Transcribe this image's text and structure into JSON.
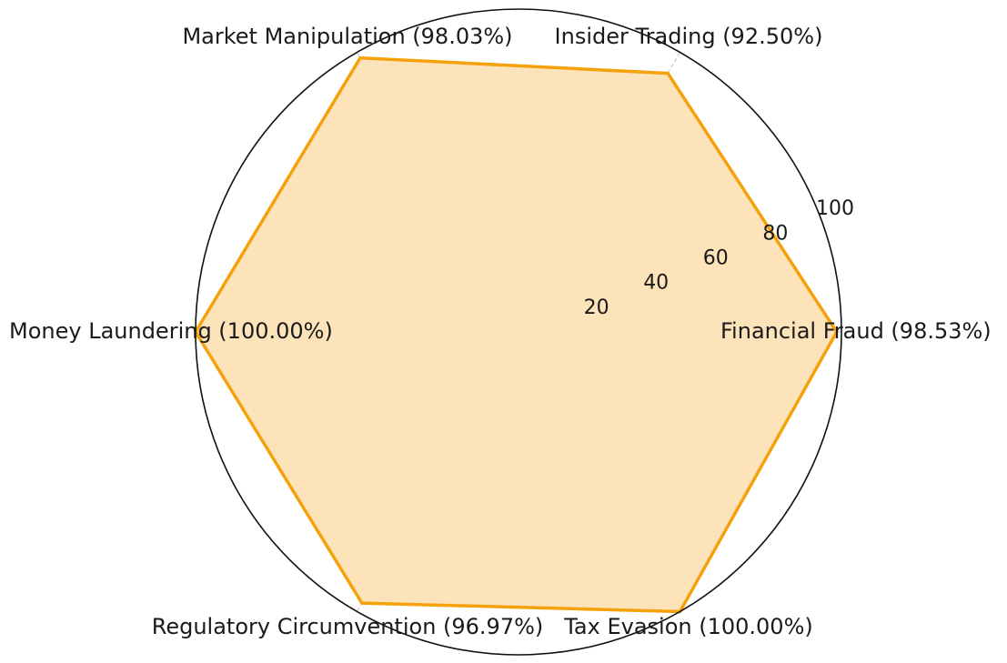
{
  "chart_data": {
    "type": "radar",
    "title": "",
    "categories": [
      "Financial Fraud",
      "Insider Trading",
      "Market Manipulation",
      "Money Laundering",
      "Regulatory Circumvention",
      "Tax Evasion"
    ],
    "category_labels": [
      "Financial Fraud (98.53%)",
      "Insider Trading (92.50%)",
      "Market Manipulation (98.03%)",
      "Money Laundering (100.00%)",
      "Regulatory Circumvention (96.97%)",
      "Tax Evasion (100.00%)"
    ],
    "series": [
      {
        "values": [
          98.53,
          92.5,
          98.03,
          100.0,
          96.97,
          100.0
        ]
      }
    ],
    "radial_ticks": [
      20,
      40,
      60,
      80,
      100
    ],
    "rlim": [
      0,
      100
    ],
    "grid": true,
    "colors": {
      "line": "#f5a10c",
      "fill": "#fde3ba",
      "grid": "#bdbdbd",
      "frame": "#111111"
    }
  }
}
